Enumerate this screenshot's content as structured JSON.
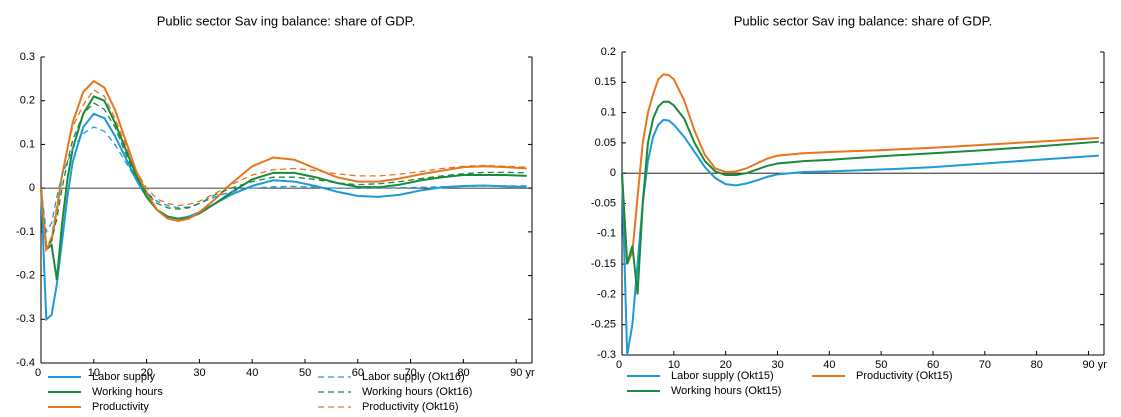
{
  "chart_data": [
    {
      "type": "line",
      "title": "Public sector Sav ing balance: share of GDP.",
      "x": [
        0,
        1,
        2,
        3,
        4,
        5,
        6,
        8,
        10,
        12,
        14,
        16,
        18,
        20,
        22,
        24,
        26,
        28,
        30,
        33,
        36,
        40,
        44,
        48,
        52,
        56,
        60,
        64,
        68,
        72,
        76,
        80,
        84,
        88,
        92
      ],
      "xlim": [
        0,
        93
      ],
      "xticks": [
        0,
        10,
        20,
        30,
        40,
        50,
        60,
        70,
        80,
        {
          "value": 90,
          "label": "90 yr"
        }
      ],
      "ylim": [
        -0.4,
        0.3
      ],
      "yticks": [
        0.3,
        0.2,
        0.1,
        0,
        -0.1,
        -0.2,
        -0.3,
        -0.4
      ],
      "zero_line": true,
      "series": [
        {
          "name": "Labor supply",
          "color": "#1f9ad6",
          "dash": false,
          "values": [
            0,
            -0.3,
            -0.29,
            -0.22,
            -0.12,
            -0.02,
            0.06,
            0.14,
            0.17,
            0.16,
            0.12,
            0.07,
            0.02,
            -0.02,
            -0.05,
            -0.065,
            -0.07,
            -0.065,
            -0.055,
            -0.035,
            -0.015,
            0.005,
            0.018,
            0.015,
            0.005,
            -0.008,
            -0.018,
            -0.02,
            -0.015,
            -0.005,
            0.002,
            0.005,
            0.006,
            0.004,
            0.003
          ]
        },
        {
          "name": "Working hours",
          "color": "#1a8a3c",
          "dash": false,
          "values": [
            0,
            -0.14,
            -0.13,
            -0.21,
            -0.08,
            0.02,
            0.09,
            0.17,
            0.21,
            0.2,
            0.15,
            0.09,
            0.03,
            -0.02,
            -0.05,
            -0.065,
            -0.07,
            -0.068,
            -0.058,
            -0.035,
            -0.01,
            0.02,
            0.035,
            0.035,
            0.025,
            0.012,
            0.003,
            0.002,
            0.008,
            0.018,
            0.025,
            0.03,
            0.03,
            0.03,
            0.028
          ]
        },
        {
          "name": "Productivity",
          "color": "#e8761e",
          "dash": false,
          "values": [
            0,
            -0.14,
            -0.12,
            -0.05,
            0.03,
            0.09,
            0.15,
            0.22,
            0.245,
            0.23,
            0.18,
            0.11,
            0.04,
            -0.01,
            -0.05,
            -0.07,
            -0.075,
            -0.07,
            -0.055,
            -0.025,
            0.01,
            0.05,
            0.07,
            0.065,
            0.045,
            0.025,
            0.015,
            0.015,
            0.022,
            0.032,
            0.04,
            0.048,
            0.05,
            0.048,
            0.045
          ]
        },
        {
          "name": "Labor supply (Okt16)",
          "color": "#1f9ad6",
          "dash": true,
          "values": [
            0,
            -0.1,
            -0.08,
            -0.02,
            0.03,
            0.06,
            0.09,
            0.125,
            0.14,
            0.13,
            0.1,
            0.06,
            0.02,
            -0.01,
            -0.03,
            -0.04,
            -0.045,
            -0.043,
            -0.035,
            -0.02,
            -0.008,
            0,
            0.003,
            0.004,
            0.002,
            0,
            0,
            0,
            0.001,
            0.002,
            0.003,
            0.004,
            0.005,
            0.005,
            0.005
          ]
        },
        {
          "name": "Working hours (Okt16)",
          "color": "#1a8a3c",
          "dash": true,
          "values": [
            0,
            -0.13,
            -0.12,
            -0.07,
            0,
            0.06,
            0.11,
            0.17,
            0.195,
            0.18,
            0.14,
            0.08,
            0.025,
            -0.01,
            -0.035,
            -0.045,
            -0.048,
            -0.045,
            -0.035,
            -0.015,
            0,
            0.015,
            0.025,
            0.025,
            0.02,
            0.012,
            0.008,
            0.01,
            0.015,
            0.022,
            0.028,
            0.033,
            0.036,
            0.036,
            0.035
          ]
        },
        {
          "name": "Productivity (Okt16)",
          "color": "#e8761e",
          "dash": true,
          "values": [
            0,
            -0.14,
            -0.11,
            -0.04,
            0.03,
            0.09,
            0.14,
            0.19,
            0.225,
            0.21,
            0.16,
            0.1,
            0.04,
            0,
            -0.025,
            -0.035,
            -0.04,
            -0.037,
            -0.03,
            -0.012,
            0.008,
            0.03,
            0.042,
            0.045,
            0.04,
            0.033,
            0.028,
            0.028,
            0.032,
            0.038,
            0.045,
            0.05,
            0.052,
            0.05,
            0.048
          ]
        }
      ]
    },
    {
      "type": "line",
      "title": "Public sector Sav ing balance: share of GDP.",
      "x": [
        0,
        1,
        2,
        3,
        4,
        5,
        6,
        7,
        8,
        9,
        10,
        12,
        14,
        16,
        18,
        20,
        22,
        24,
        26,
        28,
        30,
        35,
        40,
        50,
        60,
        70,
        80,
        92
      ],
      "xlim": [
        0,
        93
      ],
      "xticks": [
        0,
        10,
        20,
        30,
        40,
        50,
        60,
        70,
        80,
        {
          "value": 90,
          "label": "90 yr"
        }
      ],
      "ylim": [
        -0.3,
        0.2
      ],
      "yticks": [
        0.2,
        0.15,
        0.1,
        0.05,
        0,
        -0.05,
        -0.1,
        -0.15,
        -0.2,
        -0.25,
        -0.3
      ],
      "zero_line": true,
      "series": [
        {
          "name": "Labor supply (Okt15)",
          "color": "#1f9ad6",
          "dash": false,
          "values": [
            0,
            -0.3,
            -0.25,
            -0.15,
            -0.05,
            0.02,
            0.06,
            0.08,
            0.088,
            0.087,
            0.08,
            0.06,
            0.035,
            0.01,
            -0.008,
            -0.018,
            -0.02,
            -0.017,
            -0.012,
            -0.006,
            -0.002,
            0.002,
            0.003,
            0.006,
            0.01,
            0.016,
            0.022,
            0.029
          ]
        },
        {
          "name": "Productivity (Okt15)",
          "color": "#e8761e",
          "dash": false,
          "values": [
            0,
            -0.15,
            -0.13,
            -0.04,
            0.05,
            0.1,
            0.13,
            0.155,
            0.163,
            0.162,
            0.155,
            0.12,
            0.07,
            0.03,
            0.008,
            0.002,
            0.003,
            0.008,
            0.016,
            0.024,
            0.029,
            0.033,
            0.035,
            0.038,
            0.042,
            0.047,
            0.052,
            0.058
          ]
        },
        {
          "name": "Working hours (Okt15)",
          "color": "#1a8a3c",
          "dash": false,
          "values": [
            0,
            -0.15,
            -0.12,
            -0.2,
            -0.05,
            0.05,
            0.09,
            0.11,
            0.118,
            0.118,
            0.112,
            0.09,
            0.05,
            0.02,
            0.003,
            -0.003,
            -0.003,
            0,
            0.006,
            0.012,
            0.016,
            0.02,
            0.022,
            0.028,
            0.033,
            0.038,
            0.044,
            0.052
          ]
        }
      ]
    }
  ]
}
